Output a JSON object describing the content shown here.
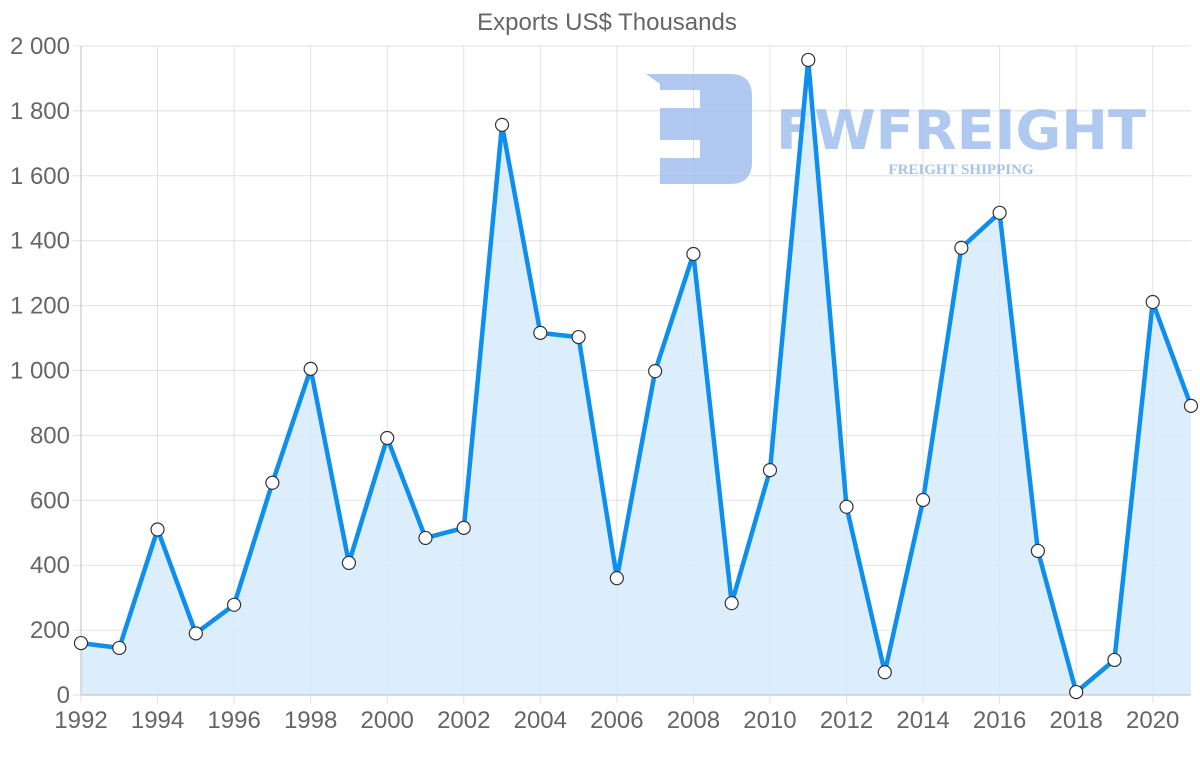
{
  "chart_data": {
    "type": "area",
    "title": "Exports US$ Thousands",
    "xlabel": "",
    "ylabel": "",
    "x": [
      1992,
      1993,
      1994,
      1995,
      1996,
      1997,
      1998,
      1999,
      2000,
      2001,
      2002,
      2003,
      2004,
      2005,
      2006,
      2007,
      2008,
      2009,
      2010,
      2011,
      2012,
      2013,
      2014,
      2015,
      2016,
      2017,
      2018,
      2019,
      2020,
      2021
    ],
    "series": [
      {
        "name": "Exports",
        "values": [
          160,
          145,
          510,
          190,
          278,
          654,
          1005,
          407,
          792,
          484,
          515,
          1757,
          1116,
          1103,
          360,
          998,
          1359,
          283,
          693,
          1957,
          580,
          70,
          601,
          1378,
          1486,
          444,
          9,
          108,
          1211,
          891
        ]
      }
    ],
    "ylim": [
      0,
      2000
    ],
    "y_ticks": [
      "0",
      "200",
      "400",
      "600",
      "800",
      "1 000",
      "1 200",
      "1 400",
      "1 600",
      "1 800",
      "2 000"
    ],
    "x_ticks": [
      "1992",
      "1994",
      "1996",
      "1998",
      "2000",
      "2002",
      "2004",
      "2006",
      "2008",
      "2010",
      "2012",
      "2014",
      "2016",
      "2018",
      "2020"
    ],
    "grid": true,
    "legend": "none",
    "colors": {
      "line": "#0e8fee",
      "fill": "#d8ebfc",
      "marker_fill": "#ffffff",
      "marker_stroke": "#333333"
    }
  },
  "watermark": {
    "brand": "FWFREIGHT",
    "tagline": "FREIGHT SHIPPING"
  }
}
